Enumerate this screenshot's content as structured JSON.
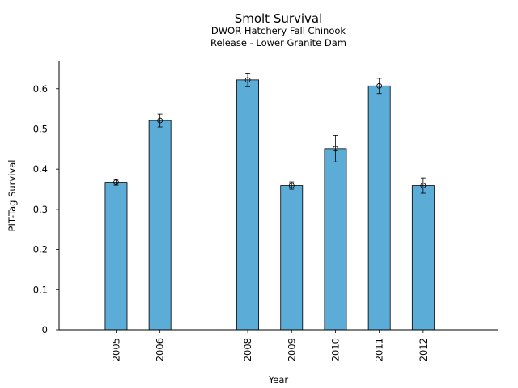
{
  "chart_data": {
    "type": "bar",
    "title": "Smolt Survival",
    "subtitle": [
      "DWOR Hatchery Fall Chinook",
      "Release - Lower Granite Dam"
    ],
    "xlabel": "Year",
    "ylabel": "PIT-Tag Survival",
    "x": [
      2005,
      2006,
      2008,
      2009,
      2010,
      2011,
      2012
    ],
    "values": [
      0.367,
      0.521,
      0.622,
      0.359,
      0.451,
      0.607,
      0.359
    ],
    "error_low": [
      0.36,
      0.505,
      0.605,
      0.35,
      0.418,
      0.588,
      0.34
    ],
    "error_high": [
      0.374,
      0.537,
      0.639,
      0.368,
      0.484,
      0.626,
      0.378
    ],
    "xlim": [
      2003.7,
      2013.7
    ],
    "ylim": [
      0,
      0.67
    ],
    "yticks": [
      0,
      0.1,
      0.2,
      0.3,
      0.4,
      0.5,
      0.6
    ],
    "ytick_labels": [
      "0",
      "0.1",
      "0.2",
      "0.3",
      "0.4",
      "0.5",
      "0.6"
    ],
    "grid": false,
    "legend": "none",
    "bar_color": "#5bacd6",
    "edge_color": "#000000"
  }
}
